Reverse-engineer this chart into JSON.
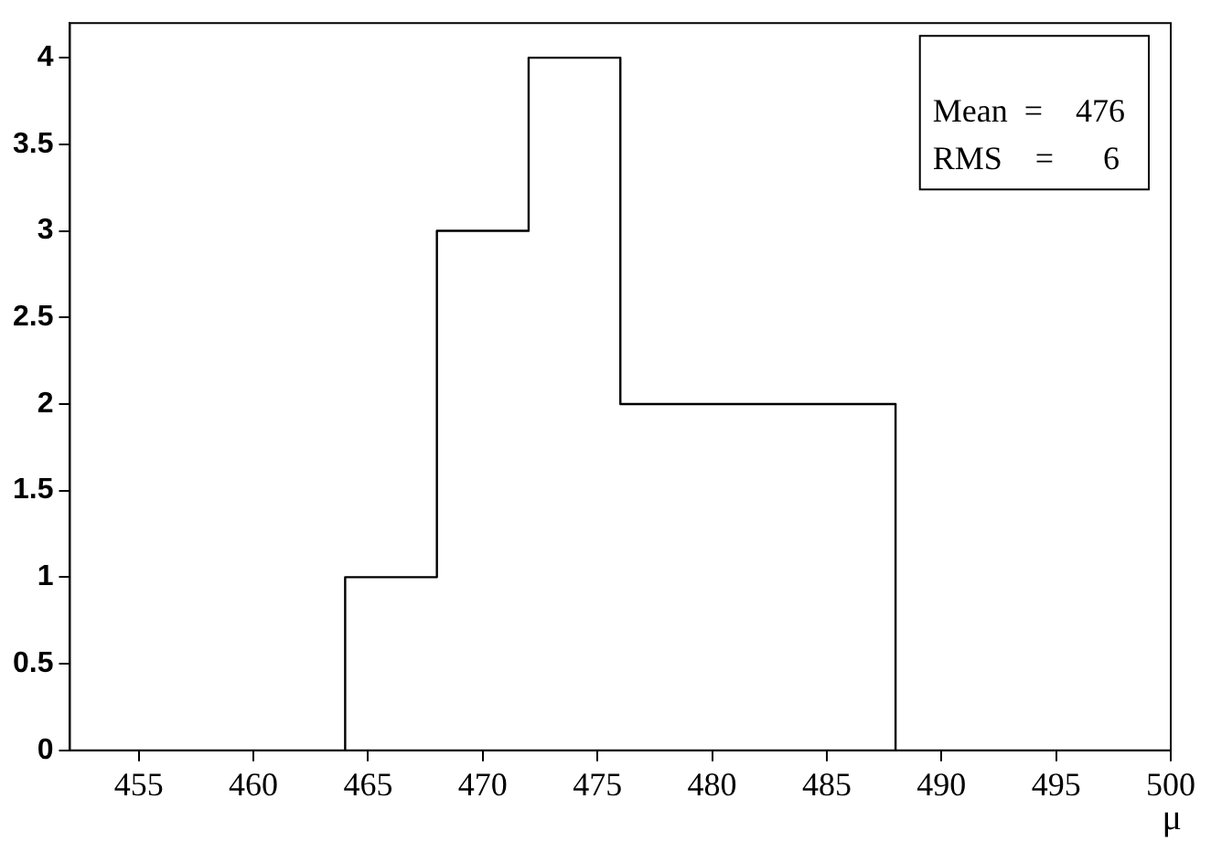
{
  "chart_data": {
    "type": "histogram",
    "xlabel": "μ",
    "bins": [
      464,
      468,
      472,
      476,
      480,
      484,
      488
    ],
    "values": [
      1,
      3,
      4,
      2,
      2,
      2
    ],
    "color": "#000000",
    "xlim": [
      452,
      500
    ],
    "xticks": [
      455,
      460,
      465,
      470,
      475,
      480,
      485,
      490,
      495,
      500
    ],
    "ylim": [
      0,
      4.2
    ],
    "yticks": [
      0,
      0.5,
      1,
      1.5,
      2,
      2.5,
      3,
      3.5,
      4
    ],
    "grid": false,
    "legend": false,
    "annotations": [
      "Mean  =    476",
      "RMS    =      6"
    ]
  }
}
